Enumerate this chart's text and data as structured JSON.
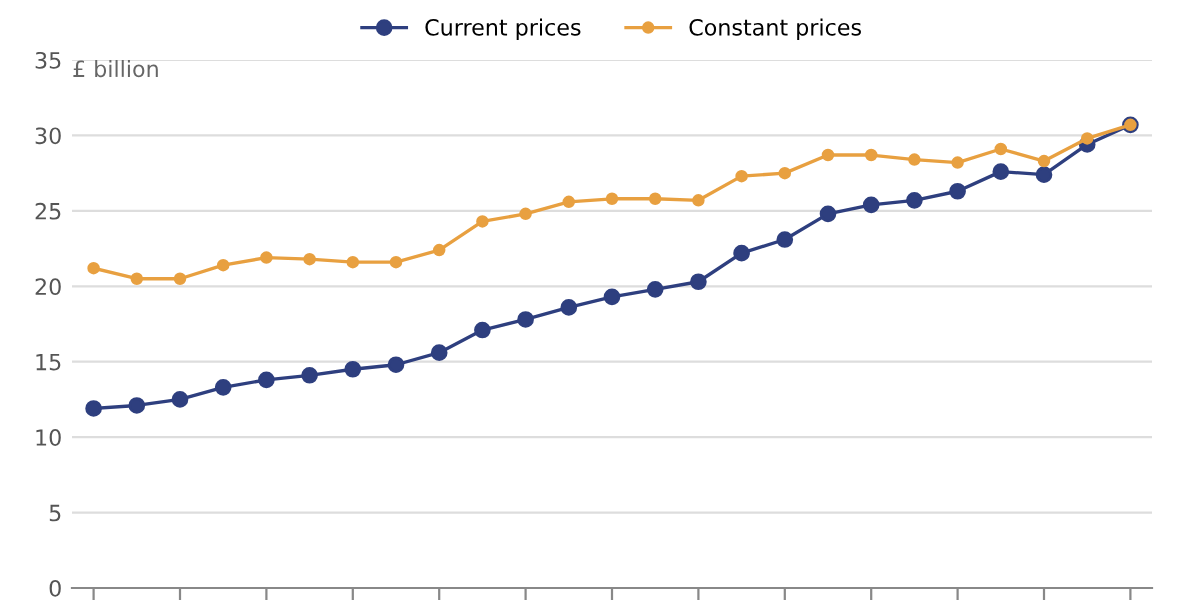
{
  "chart_data": {
    "type": "line",
    "ylabel": "£ billion",
    "categories": [
      null,
      null,
      null,
      null,
      null,
      null,
      null,
      null,
      null,
      null,
      null,
      null,
      null,
      null,
      null,
      null,
      null,
      null,
      null,
      null,
      null,
      null,
      null,
      null,
      null
    ],
    "series": [
      {
        "name": "Current prices",
        "color": "#2e3f7f",
        "values": [
          11.9,
          12.1,
          12.5,
          13.3,
          13.8,
          14.1,
          14.5,
          14.8,
          15.6,
          17.1,
          17.8,
          18.6,
          19.3,
          19.8,
          20.3,
          22.2,
          23.1,
          24.8,
          25.4,
          25.7,
          26.3,
          27.6,
          27.4,
          29.4,
          30.7
        ]
      },
      {
        "name": "Constant prices",
        "color": "#e8a040",
        "values": [
          21.2,
          20.5,
          20.5,
          21.4,
          21.9,
          21.8,
          21.6,
          21.6,
          22.4,
          24.3,
          24.8,
          25.6,
          25.8,
          25.8,
          25.7,
          27.3,
          27.5,
          28.7,
          28.7,
          28.4,
          28.2,
          29.1,
          28.3,
          29.8,
          30.7
        ]
      }
    ],
    "ylim": [
      0,
      35
    ],
    "yticks": [
      0,
      5,
      10,
      15,
      20,
      25,
      30,
      35
    ],
    "grid": "y",
    "legend": "top",
    "marker": "circle",
    "line_style": "solid",
    "tick_labels": "y"
  }
}
